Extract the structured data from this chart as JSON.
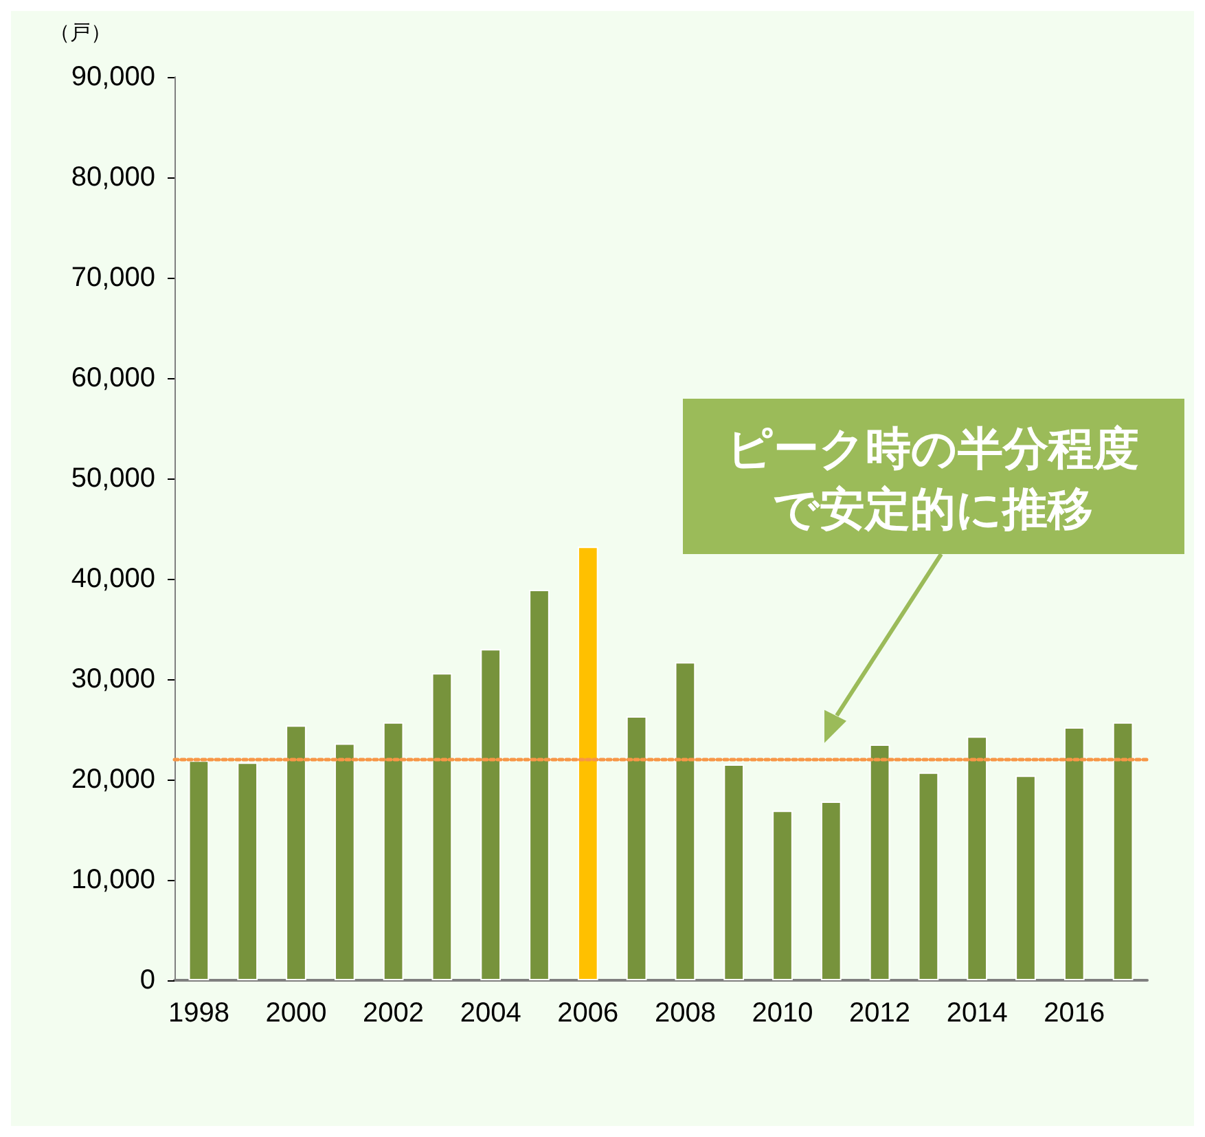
{
  "chart_data": {
    "type": "bar",
    "ylabel": "（戸）",
    "categories": [
      "1998",
      null,
      "2000",
      null,
      "2002",
      null,
      "2004",
      null,
      "2006",
      null,
      "2008",
      null,
      "2010",
      null,
      "2012",
      null,
      "2014",
      null,
      "2016",
      null
    ],
    "values": [
      21900,
      21700,
      25400,
      23600,
      25700,
      30600,
      33000,
      38900,
      43200,
      26300,
      31700,
      21500,
      16900,
      17800,
      23500,
      20700,
      24300,
      20400,
      25200,
      25700
    ],
    "colors": [
      "#77933c",
      "#77933c",
      "#77933c",
      "#77933c",
      "#77933c",
      "#77933c",
      "#77933c",
      "#77933c",
      "#ffc000",
      "#77933c",
      "#77933c",
      "#77933c",
      "#77933c",
      "#77933c",
      "#77933c",
      "#77933c",
      "#77933c",
      "#77933c",
      "#77933c",
      "#77933c"
    ],
    "ylim": [
      0,
      90000
    ],
    "yticks": [
      0,
      {
        "value": 10000,
        "label": "10,000"
      },
      {
        "value": 20000,
        "label": "20,000"
      },
      {
        "value": 30000,
        "label": "30,000"
      },
      {
        "value": 40000,
        "label": "40,000"
      },
      {
        "value": 50000,
        "label": "50,000"
      },
      {
        "value": 60000,
        "label": "60,000"
      },
      {
        "value": 70000,
        "label": "70,000"
      },
      {
        "value": 80000,
        "label": "80,000"
      },
      {
        "value": 90000,
        "label": "90,000"
      }
    ],
    "ref_lines": [
      {
        "axis": "y",
        "value": 22000,
        "color": "#f79646",
        "line_style": "dotted"
      }
    ],
    "annotations": [
      "ピーク時の半分程度で安定的に推移"
    ],
    "grid": false
  }
}
